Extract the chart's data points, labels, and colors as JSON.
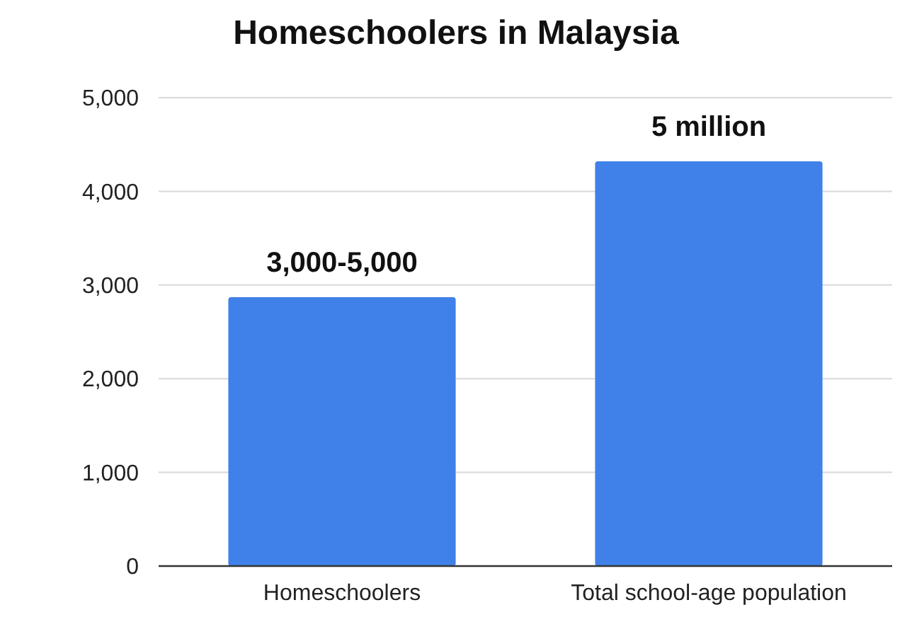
{
  "chart_data": {
    "type": "bar",
    "title": "Homeschoolers in Malaysia",
    "categories": [
      "Homeschoolers",
      "Total school-age population"
    ],
    "values": [
      2870,
      4320
    ],
    "color": "#4081e9",
    "annotations": [
      {
        "text": "3,000-5,000",
        "x": "Homeschoolers",
        "y": 2870
      },
      {
        "text": "5 million",
        "x": "Total school-age population",
        "y": 4320
      }
    ],
    "ylim": [
      0,
      5000
    ],
    "yticks": [
      {
        "value": 0,
        "label": "0"
      },
      {
        "value": 1000,
        "label": "1,000"
      },
      {
        "value": 2000,
        "label": "2,000"
      },
      {
        "value": 3000,
        "label": "3,000"
      },
      {
        "value": 4000,
        "label": "4,000"
      },
      {
        "value": 5000,
        "label": "5,000"
      }
    ],
    "grid": "y"
  }
}
